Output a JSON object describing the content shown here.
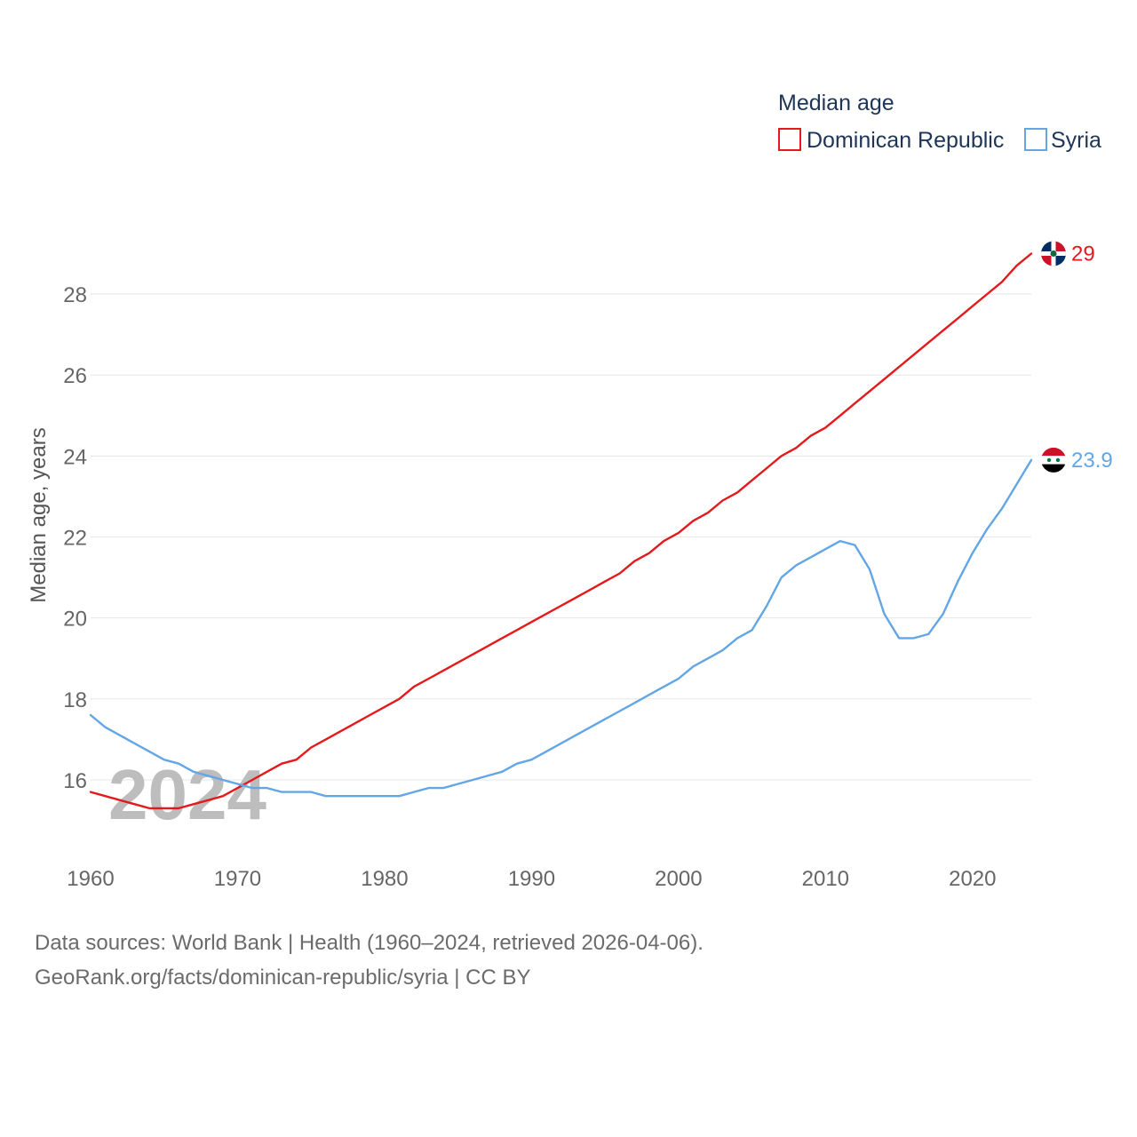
{
  "chart_data": {
    "type": "line",
    "legend_title": "Median age",
    "legend_position": "top-right",
    "ylabel": "Median age, years",
    "xlabel": "",
    "ylim": [
      14.2,
      29.8
    ],
    "xlim": [
      1960,
      2024
    ],
    "yticks": [
      16,
      18,
      20,
      22,
      24,
      26,
      28
    ],
    "xticks": [
      1960,
      1970,
      1980,
      1990,
      2000,
      2010,
      2020
    ],
    "grid": true,
    "year_watermark": "2024",
    "years": [
      1960,
      1961,
      1962,
      1963,
      1964,
      1965,
      1966,
      1967,
      1968,
      1969,
      1970,
      1971,
      1972,
      1973,
      1974,
      1975,
      1976,
      1977,
      1978,
      1979,
      1980,
      1981,
      1982,
      1983,
      1984,
      1985,
      1986,
      1987,
      1988,
      1989,
      1990,
      1991,
      1992,
      1993,
      1994,
      1995,
      1996,
      1997,
      1998,
      1999,
      2000,
      2001,
      2002,
      2003,
      2004,
      2005,
      2006,
      2007,
      2008,
      2009,
      2010,
      2011,
      2012,
      2013,
      2014,
      2015,
      2016,
      2017,
      2018,
      2019,
      2020,
      2021,
      2022,
      2023,
      2024
    ],
    "series": [
      {
        "name": "Dominican Republic",
        "color": "#e31a1c",
        "end_label": "29",
        "flag": "dominican-republic-flag",
        "values": [
          15.7,
          15.6,
          15.5,
          15.4,
          15.3,
          15.3,
          15.3,
          15.4,
          15.5,
          15.6,
          15.8,
          16.0,
          16.2,
          16.4,
          16.5,
          16.8,
          17.0,
          17.2,
          17.4,
          17.6,
          17.8,
          18.0,
          18.3,
          18.5,
          18.7,
          18.9,
          19.1,
          19.3,
          19.5,
          19.7,
          19.9,
          20.1,
          20.3,
          20.5,
          20.7,
          20.9,
          21.1,
          21.4,
          21.6,
          21.9,
          22.1,
          22.4,
          22.6,
          22.9,
          23.1,
          23.4,
          23.7,
          24.0,
          24.2,
          24.5,
          24.7,
          25.0,
          25.3,
          25.6,
          25.9,
          26.2,
          26.5,
          26.8,
          27.1,
          27.4,
          27.7,
          28.0,
          28.3,
          28.7,
          29.0
        ]
      },
      {
        "name": "Syria",
        "color": "#63a6e6",
        "end_label": "23.9",
        "flag": "syria-flag",
        "values": [
          17.6,
          17.3,
          17.1,
          16.9,
          16.7,
          16.5,
          16.4,
          16.2,
          16.1,
          16.0,
          15.9,
          15.8,
          15.8,
          15.7,
          15.7,
          15.7,
          15.6,
          15.6,
          15.6,
          15.6,
          15.6,
          15.6,
          15.7,
          15.8,
          15.8,
          15.9,
          16.0,
          16.1,
          16.2,
          16.4,
          16.5,
          16.7,
          16.9,
          17.1,
          17.3,
          17.5,
          17.7,
          17.9,
          18.1,
          18.3,
          18.5,
          18.8,
          19.0,
          19.2,
          19.5,
          19.7,
          20.3,
          21.0,
          21.3,
          21.5,
          21.7,
          21.9,
          21.8,
          21.2,
          20.1,
          19.5,
          19.5,
          19.6,
          20.1,
          20.9,
          21.6,
          22.2,
          22.7,
          23.3,
          23.9
        ]
      }
    ]
  },
  "footer": {
    "source_line": "Data sources: World Bank | Health (1960–2024, retrieved 2026-04-06).",
    "credit_line": "GeoRank.org/facts/dominican-republic/syria | CC BY"
  }
}
